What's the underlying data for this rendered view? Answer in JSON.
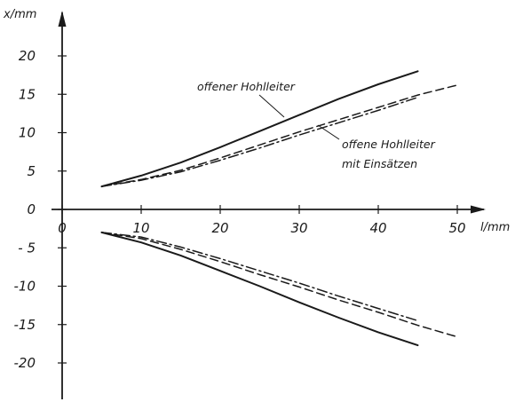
{
  "chart_data": {
    "type": "line",
    "title": "",
    "xlabel": "l/mm",
    "ylabel": "x/mm",
    "xlim": [
      0,
      52
    ],
    "ylim": [
      -23,
      22
    ],
    "x_ticks": [
      0,
      10,
      20,
      30,
      40,
      50
    ],
    "y_ticks": [
      20,
      15,
      10,
      5,
      0,
      -5,
      -10,
      -15,
      -20
    ],
    "x_tick_labels": [
      "0",
      "10",
      "20",
      "30",
      "40",
      "50"
    ],
    "y_tick_labels": [
      "20",
      "15",
      "10",
      "5",
      "0",
      "- 5",
      "-10",
      "-15",
      "-20"
    ],
    "grid": false,
    "annotations": [
      {
        "text": "offener Hohlleiter",
        "points_to": "offener Hohlleiter (upper)"
      },
      {
        "text": "offene Hohlleiter",
        "text2": "mit Einsätzen",
        "points_to": "upper inserts curves"
      }
    ],
    "series": [
      {
        "style": "solid",
        "x": [
          5,
          10,
          15,
          20,
          25,
          30,
          35,
          40,
          45
        ],
        "y": [
          3,
          4.4,
          6.1,
          8.1,
          10.2,
          12.3,
          14.4,
          16.3,
          18
        ]
      },
      {
        "style": "dashed",
        "x": [
          5,
          10,
          15,
          20,
          25,
          30,
          35,
          40,
          45,
          50
        ],
        "y": [
          3,
          3.9,
          5.1,
          6.7,
          8.4,
          10.1,
          11.7,
          13.3,
          14.9,
          16.2
        ]
      },
      {
        "style": "dashdot",
        "x": [
          5,
          10,
          15,
          20,
          25,
          30,
          35,
          40,
          45
        ],
        "y": [
          3,
          3.8,
          4.9,
          6.4,
          8.0,
          9.7,
          11.3,
          12.9,
          14.6
        ]
      },
      {
        "style": "solid",
        "x": [
          5,
          10,
          15,
          20,
          25,
          30,
          35,
          40,
          45
        ],
        "y": [
          -3,
          -4.3,
          -6.0,
          -8.0,
          -10.0,
          -12.1,
          -14.1,
          -16.0,
          -17.7
        ]
      },
      {
        "style": "dashed",
        "x": [
          5,
          10,
          15,
          20,
          25,
          30,
          35,
          40,
          45,
          50
        ],
        "y": [
          -3,
          -3.8,
          -5.2,
          -6.8,
          -8.5,
          -10.1,
          -11.8,
          -13.4,
          -15.1,
          -16.6
        ]
      },
      {
        "style": "dashdot",
        "x": [
          5,
          10,
          15,
          20,
          25,
          30,
          35,
          40,
          45
        ],
        "y": [
          -3,
          -3.6,
          -4.9,
          -6.4,
          -8.0,
          -9.6,
          -11.3,
          -12.9,
          -14.5
        ]
      }
    ]
  }
}
